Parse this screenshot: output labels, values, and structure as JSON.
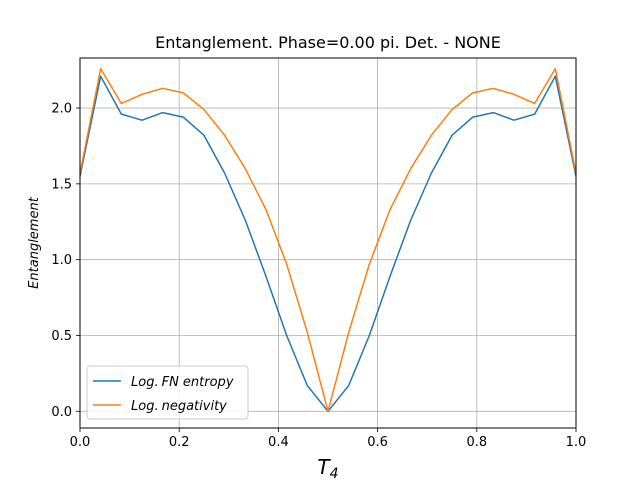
{
  "chart_data": {
    "type": "line",
    "title": "Entanglement. Phase=0.00 pi. Det. - NONE",
    "xlabel_main": "T",
    "xlabel_sub": "4",
    "ylabel": "Entanglement",
    "xlim": [
      0.0,
      1.0
    ],
    "ylim": [
      -0.11,
      2.33
    ],
    "xticks": [
      0.0,
      0.2,
      0.4,
      0.6,
      0.8,
      1.0
    ],
    "xtick_labels": [
      "0.0",
      "0.2",
      "0.4",
      "0.6",
      "0.8",
      "1.0"
    ],
    "yticks": [
      0.0,
      0.5,
      1.0,
      1.5,
      2.0
    ],
    "ytick_labels": [
      "0.0",
      "0.5",
      "1.0",
      "1.5",
      "2.0"
    ],
    "grid": true,
    "legend_position": "lower-left",
    "x": [
      0.0,
      0.0417,
      0.0833,
      0.125,
      0.1667,
      0.2083,
      0.25,
      0.2917,
      0.3333,
      0.375,
      0.4167,
      0.4583,
      0.5,
      0.5417,
      0.5833,
      0.625,
      0.6667,
      0.7083,
      0.75,
      0.7917,
      0.8333,
      0.875,
      0.9167,
      0.9583,
      1.0
    ],
    "series": [
      {
        "name": "Log.FN entropy",
        "color": "#1f77b4",
        "values": [
          1.55,
          2.21,
          1.96,
          1.92,
          1.97,
          1.94,
          1.82,
          1.57,
          1.26,
          0.89,
          0.5,
          0.17,
          0.0,
          0.17,
          0.5,
          0.89,
          1.26,
          1.57,
          1.82,
          1.94,
          1.97,
          1.92,
          1.96,
          2.21,
          1.55
        ]
      },
      {
        "name": "Log.negativity",
        "color": "#ff7f0e",
        "values": [
          1.57,
          2.26,
          2.03,
          2.09,
          2.13,
          2.1,
          1.99,
          1.82,
          1.6,
          1.33,
          0.97,
          0.52,
          0.0,
          0.52,
          0.97,
          1.33,
          1.6,
          1.82,
          1.99,
          2.1,
          2.13,
          2.09,
          2.03,
          2.26,
          1.57
        ]
      }
    ]
  },
  "legend": {
    "items": [
      {
        "prefix": "Log.",
        "suffix": "FN entropy"
      },
      {
        "prefix": "Log.",
        "suffix": "negativity"
      }
    ]
  }
}
